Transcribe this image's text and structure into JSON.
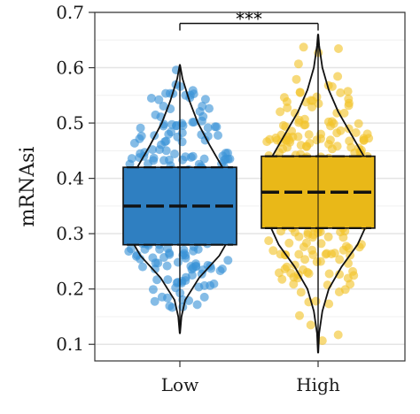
{
  "chart_data": {
    "type": "box-violin-jitter",
    "title": "",
    "xlabel": "",
    "ylabel": "mRNAsi",
    "ylim": [
      0.07,
      0.7
    ],
    "y_ticks": [
      "0.1",
      "0.2",
      "0.3",
      "0.4",
      "0.5",
      "0.6",
      "0.7"
    ],
    "grid": "horizontal",
    "legend": "none",
    "categories": [
      "Low",
      "High"
    ],
    "series": [
      {
        "name": "Low",
        "color": "#2f7fc1",
        "point_color": "#3a93d6",
        "min": 0.12,
        "q1": 0.28,
        "median": 0.35,
        "q3": 0.42,
        "max": 0.605,
        "point_range": [
          0.12,
          0.6
        ],
        "violin": [
          [
            0.12,
            0.003
          ],
          [
            0.15,
            0.03
          ],
          [
            0.18,
            0.1
          ],
          [
            0.22,
            0.36
          ],
          [
            0.26,
            0.74
          ],
          [
            0.3,
            0.98
          ],
          [
            0.34,
            1.0
          ],
          [
            0.38,
            0.96
          ],
          [
            0.42,
            0.8
          ],
          [
            0.46,
            0.56
          ],
          [
            0.5,
            0.34
          ],
          [
            0.54,
            0.18
          ],
          [
            0.58,
            0.05
          ],
          [
            0.605,
            0.003
          ]
        ]
      },
      {
        "name": "High",
        "color": "#e9b818",
        "point_color": "#f2c42a",
        "min": 0.085,
        "q1": 0.31,
        "median": 0.375,
        "q3": 0.44,
        "max": 0.66,
        "point_range": [
          0.1,
          0.66
        ],
        "violin": [
          [
            0.085,
            0.003
          ],
          [
            0.12,
            0.02
          ],
          [
            0.16,
            0.08
          ],
          [
            0.2,
            0.2
          ],
          [
            0.24,
            0.44
          ],
          [
            0.28,
            0.74
          ],
          [
            0.32,
            0.93
          ],
          [
            0.36,
            1.0
          ],
          [
            0.4,
            0.98
          ],
          [
            0.44,
            0.86
          ],
          [
            0.48,
            0.62
          ],
          [
            0.52,
            0.38
          ],
          [
            0.56,
            0.2
          ],
          [
            0.6,
            0.08
          ],
          [
            0.64,
            0.02
          ],
          [
            0.66,
            0.003
          ]
        ]
      }
    ],
    "significance": {
      "label": "***",
      "between": [
        "Low",
        "High"
      ],
      "y": 0.68
    }
  }
}
